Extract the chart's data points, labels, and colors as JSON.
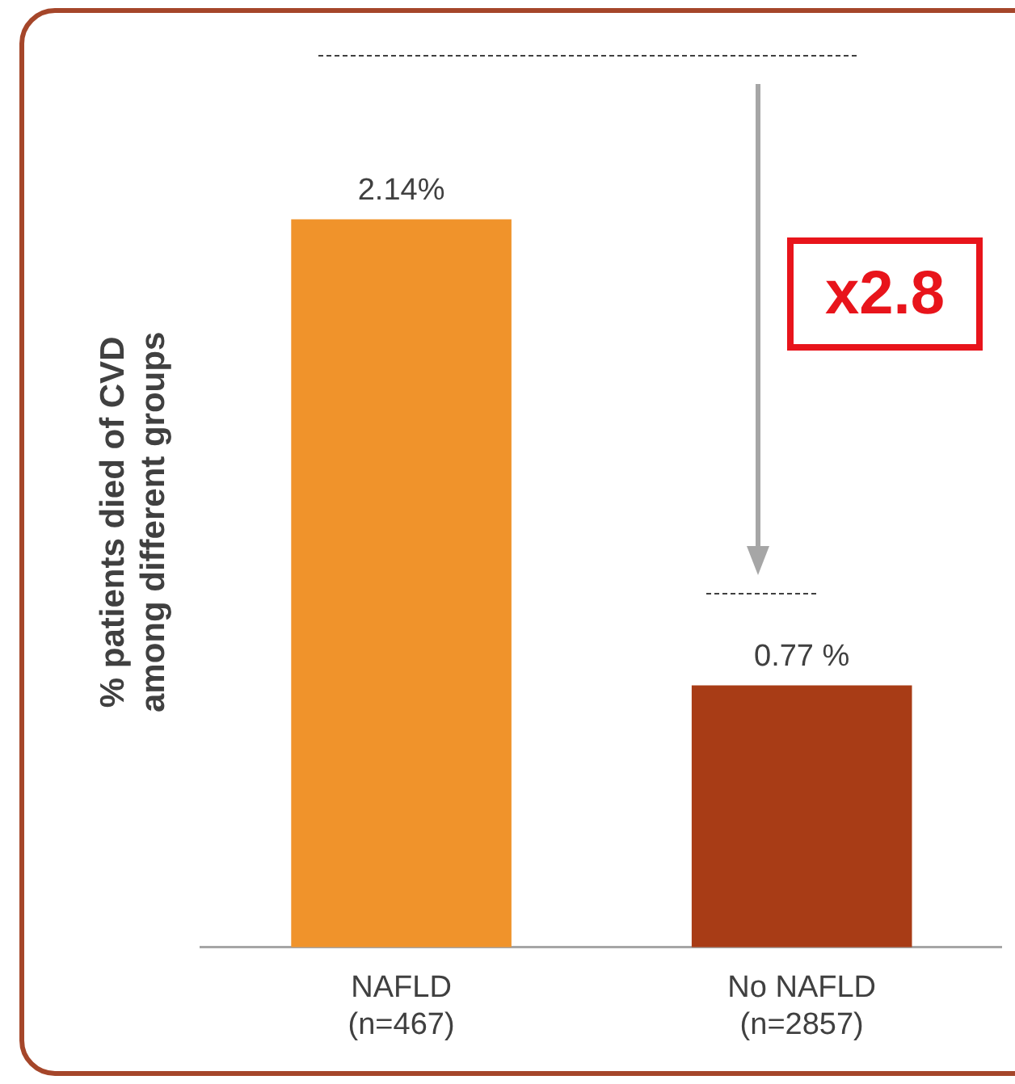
{
  "chart_data": {
    "type": "bar",
    "ylabel": "% patients died of CVD\namong different groups",
    "categories": [
      "NAFLD\n(n=467)",
      "No NAFLD\n(n=2857)"
    ],
    "values": [
      2.14,
      0.77
    ],
    "value_labels": [
      "2.14%",
      "0.77 %"
    ],
    "colors": [
      "#f0932b",
      "#a83c16"
    ],
    "annotations": [
      "x2.8"
    ],
    "grid": false,
    "legend": false
  }
}
